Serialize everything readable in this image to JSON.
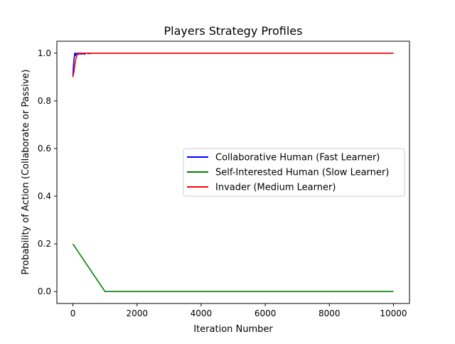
{
  "chart_data": {
    "type": "line",
    "title": "Players Strategy Profiles",
    "xlabel": "Iteration Number",
    "ylabel": "Probability of Action (Collaborate or Passive)",
    "xlim": [
      -500,
      10500
    ],
    "ylim": [
      -0.05,
      1.05
    ],
    "xticks": [
      0,
      2000,
      4000,
      6000,
      8000,
      10000
    ],
    "xtick_labels": [
      "0",
      "2000",
      "4000",
      "6000",
      "8000",
      "10000"
    ],
    "yticks": [
      0.0,
      0.2,
      0.4,
      0.6,
      0.8,
      1.0
    ],
    "ytick_labels": [
      "0.0",
      "0.2",
      "0.4",
      "0.6",
      "0.8",
      "1.0"
    ],
    "grid": false,
    "legend_position": "center-right",
    "series": [
      {
        "name": "Collaborative Human (Fast Learner)",
        "color": "#0000ff",
        "x": [
          0,
          10,
          30,
          50,
          60,
          80,
          100,
          120,
          150,
          180,
          220,
          260,
          300,
          350,
          400,
          500,
          600,
          800,
          1000,
          2000,
          4000,
          6000,
          8000,
          10000
        ],
        "y": [
          0.9,
          0.93,
          0.97,
          0.99,
          1.0,
          0.99,
          1.0,
          0.995,
          1.0,
          0.995,
          1.0,
          0.995,
          1.0,
          0.995,
          1.0,
          0.998,
          1.0,
          1.0,
          1.0,
          1.0,
          1.0,
          1.0,
          1.0,
          1.0
        ]
      },
      {
        "name": "Self-Interested Human (Slow Learner)",
        "color": "#008000",
        "x": [
          0,
          1000,
          2000,
          4000,
          6000,
          8000,
          10000
        ],
        "y": [
          0.2,
          0.0,
          0.0,
          0.0,
          0.0,
          0.0,
          0.0
        ]
      },
      {
        "name": "Invader (Medium Learner)",
        "color": "#ff0000",
        "x": [
          0,
          30,
          60,
          100,
          150,
          200,
          300,
          500,
          1000,
          2000,
          4000,
          6000,
          8000,
          10000
        ],
        "y": [
          0.9,
          0.92,
          0.95,
          0.98,
          1.0,
          1.0,
          1.0,
          1.0,
          1.0,
          1.0,
          1.0,
          1.0,
          1.0,
          1.0
        ]
      }
    ]
  }
}
